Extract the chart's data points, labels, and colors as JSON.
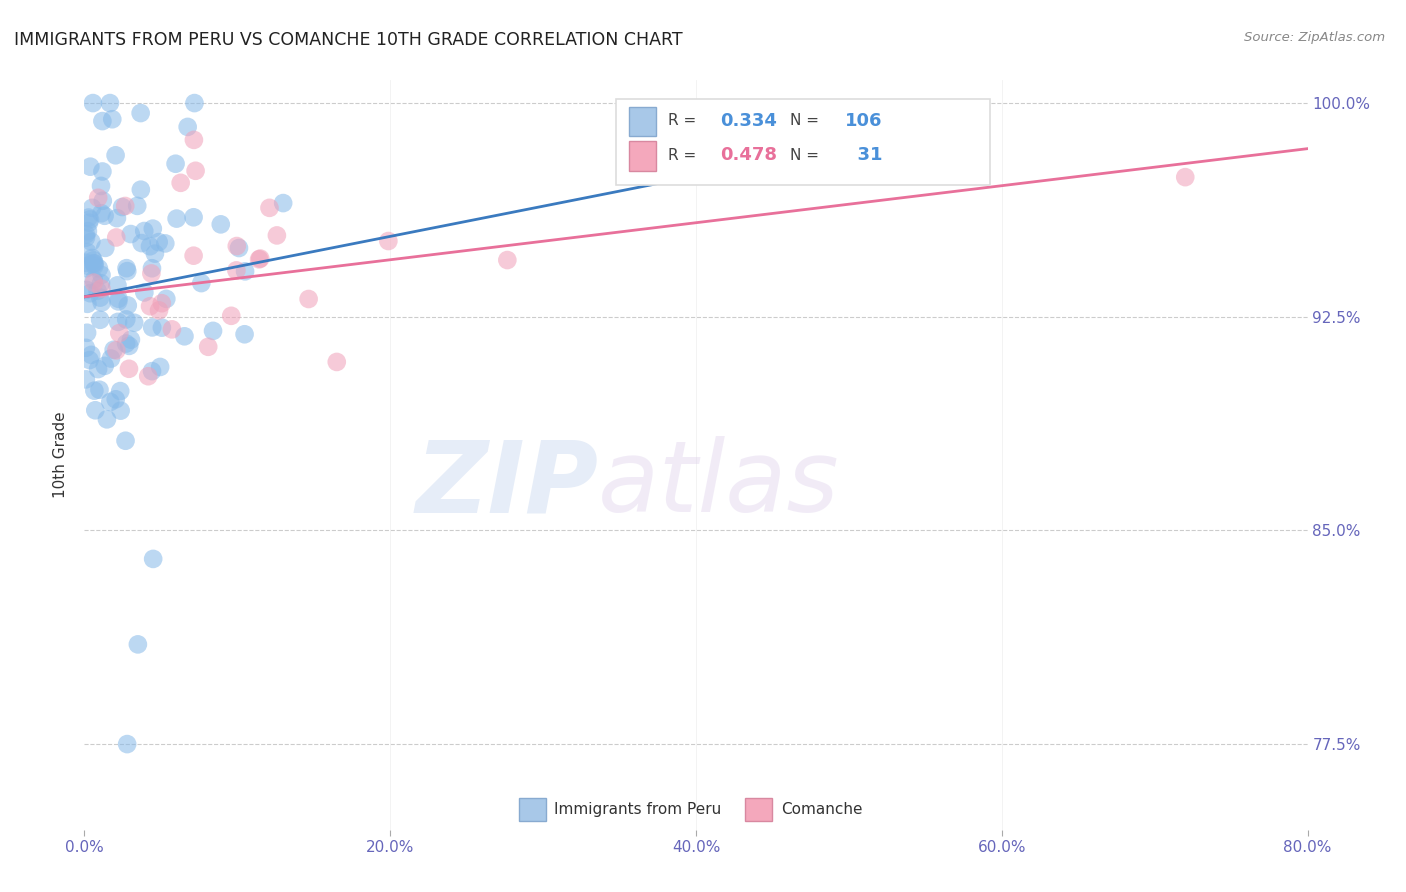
{
  "title": "IMMIGRANTS FROM PERU VS COMANCHE 10TH GRADE CORRELATION CHART",
  "source": "Source: ZipAtlas.com",
  "xlabel_ticks": [
    "0.0%",
    "20.0%",
    "40.0%",
    "60.0%",
    "80.0%"
  ],
  "ylabel_ticks": [
    "77.5%",
    "85.0%",
    "92.5%",
    "100.0%"
  ],
  "ylabel_label": "10th Grade",
  "blue_scatter_color": "#85b8e8",
  "pink_scatter_color": "#f0a0b8",
  "blue_line_color": "#3a7abf",
  "pink_line_color": "#e8709a",
  "xmin": 0.0,
  "xmax": 0.8,
  "ymin": 0.745,
  "ymax": 1.008,
  "watermark_zip": "ZIP",
  "watermark_atlas": "atlas",
  "R_blue": 0.334,
  "N_blue": 106,
  "R_pink": 0.478,
  "N_pink": 31,
  "seed": 42,
  "legend_R1": "0.334",
  "legend_N1": "106",
  "legend_R2": "0.478",
  "legend_N2": "31",
  "legend_color_R": "#4a90d9",
  "legend_color_N": "#4a90d9",
  "legend_color_R2": "#e8709a",
  "legend_color_N2": "#4a90d9"
}
